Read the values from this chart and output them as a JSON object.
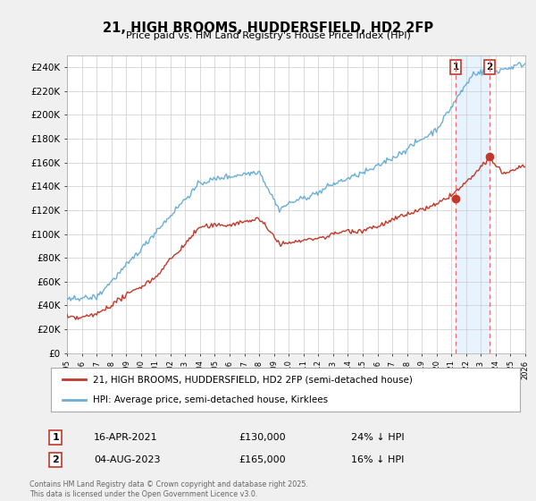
{
  "title": "21, HIGH BROOMS, HUDDERSFIELD, HD2 2FP",
  "subtitle": "Price paid vs. HM Land Registry's House Price Index (HPI)",
  "ylim": [
    0,
    250000
  ],
  "yticks": [
    0,
    20000,
    40000,
    60000,
    80000,
    100000,
    120000,
    140000,
    160000,
    180000,
    200000,
    220000,
    240000
  ],
  "ytick_labels": [
    "£0",
    "£20K",
    "£40K",
    "£60K",
    "£80K",
    "£100K",
    "£120K",
    "£140K",
    "£160K",
    "£180K",
    "£200K",
    "£220K",
    "£240K"
  ],
  "hpi_color": "#6baed6",
  "price_color": "#c0392b",
  "dashed_color": "#e87070",
  "shade_color": "#ddeeff",
  "background_color": "#f0f0f0",
  "plot_bg_color": "#ffffff",
  "grid_color": "#cccccc",
  "legend_label_price": "21, HIGH BROOMS, HUDDERSFIELD, HD2 2FP (semi-detached house)",
  "legend_label_hpi": "HPI: Average price, semi-detached house, Kirklees",
  "annotation1_label": "1",
  "annotation1_date": "16-APR-2021",
  "annotation1_price": "£130,000",
  "annotation1_pct": "24% ↓ HPI",
  "annotation2_label": "2",
  "annotation2_date": "04-AUG-2023",
  "annotation2_price": "£165,000",
  "annotation2_pct": "16% ↓ HPI",
  "footer": "Contains HM Land Registry data © Crown copyright and database right 2025.\nThis data is licensed under the Open Government Licence v3.0.",
  "marker1_x_year": 2021.29,
  "marker1_y": 130000,
  "marker2_x_year": 2023.59,
  "marker2_y": 165000,
  "xlim_start": 1995,
  "xlim_end": 2026
}
